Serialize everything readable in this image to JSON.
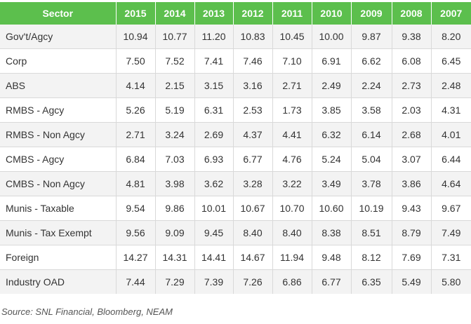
{
  "chart_data": {
    "type": "table",
    "columns": [
      "Sector",
      "2015",
      "2014",
      "2013",
      "2012",
      "2011",
      "2010",
      "2009",
      "2008",
      "2007"
    ],
    "rows": [
      {
        "sector": "Gov't/Agcy",
        "values": [
          "10.94",
          "10.77",
          "11.20",
          "10.83",
          "10.45",
          "10.00",
          "9.87",
          "9.38",
          "8.20"
        ]
      },
      {
        "sector": "Corp",
        "values": [
          "7.50",
          "7.52",
          "7.41",
          "7.46",
          "7.10",
          "6.91",
          "6.62",
          "6.08",
          "6.45"
        ]
      },
      {
        "sector": "ABS",
        "values": [
          "4.14",
          "2.15",
          "3.15",
          "3.16",
          "2.71",
          "2.49",
          "2.24",
          "2.73",
          "2.48"
        ]
      },
      {
        "sector": "RMBS - Agcy",
        "values": [
          "5.26",
          "5.19",
          "6.31",
          "2.53",
          "1.73",
          "3.85",
          "3.58",
          "2.03",
          "4.31"
        ]
      },
      {
        "sector": "RMBS - Non Agcy",
        "values": [
          "2.71",
          "3.24",
          "2.69",
          "4.37",
          "4.41",
          "6.32",
          "6.14",
          "2.68",
          "4.01"
        ]
      },
      {
        "sector": "CMBS - Agcy",
        "values": [
          "6.84",
          "7.03",
          "6.93",
          "6.77",
          "4.76",
          "5.24",
          "5.04",
          "3.07",
          "6.44"
        ]
      },
      {
        "sector": "CMBS - Non Agcy",
        "values": [
          "4.81",
          "3.98",
          "3.62",
          "3.28",
          "3.22",
          "3.49",
          "3.78",
          "3.86",
          "4.64"
        ]
      },
      {
        "sector": "Munis - Taxable",
        "values": [
          "9.54",
          "9.86",
          "10.01",
          "10.67",
          "10.70",
          "10.60",
          "10.19",
          "9.43",
          "9.67"
        ]
      },
      {
        "sector": "Munis - Tax Exempt",
        "values": [
          "9.56",
          "9.09",
          "9.45",
          "8.40",
          "8.40",
          "8.38",
          "8.51",
          "8.79",
          "7.49"
        ]
      },
      {
        "sector": "Foreign",
        "values": [
          "14.27",
          "14.31",
          "14.41",
          "14.67",
          "11.94",
          "9.48",
          "8.12",
          "7.69",
          "7.31"
        ]
      },
      {
        "sector": "Industry OAD",
        "values": [
          "7.44",
          "7.29",
          "7.39",
          "7.26",
          "6.86",
          "6.77",
          "6.35",
          "5.49",
          "5.80"
        ]
      }
    ],
    "header_color": "#5cbf4d",
    "stripe_color": "#f3f3f3"
  },
  "source": "Source: SNL Financial, Bloomberg, NEAM"
}
